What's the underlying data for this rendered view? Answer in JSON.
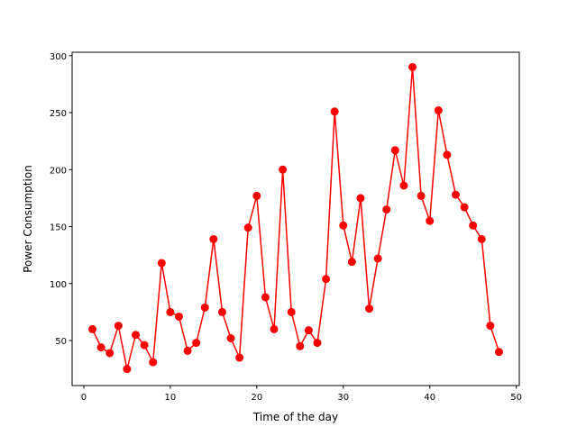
{
  "chart_data": {
    "type": "line",
    "title": "",
    "xlabel": "Time of the day",
    "ylabel": "Power Consumption",
    "xlim": [
      -1.35,
      50.35
    ],
    "ylim": [
      10.5,
      303
    ],
    "xticks": [
      0,
      10,
      20,
      30,
      40,
      50
    ],
    "yticks": [
      50,
      100,
      150,
      200,
      250,
      300
    ],
    "grid": false,
    "legend": "none",
    "color": "#ff0000",
    "marker": "circle",
    "x": [
      1,
      2,
      3,
      4,
      5,
      6,
      7,
      8,
      9,
      10,
      11,
      12,
      13,
      14,
      15,
      16,
      17,
      18,
      19,
      20,
      21,
      22,
      23,
      24,
      25,
      26,
      27,
      28,
      29,
      30,
      31,
      32,
      33,
      34,
      35,
      36,
      37,
      38,
      39,
      40,
      41,
      42,
      43,
      44,
      45,
      46,
      47,
      48
    ],
    "y": [
      60,
      44,
      39,
      63,
      25,
      55,
      46,
      31,
      118,
      75,
      71,
      41,
      48,
      79,
      139,
      75,
      52,
      35,
      149,
      177,
      88,
      60,
      200,
      75,
      45,
      59,
      48,
      104,
      251,
      151,
      119,
      175,
      78,
      122,
      165,
      217,
      186,
      290,
      177,
      155,
      252,
      213,
      178,
      167,
      151,
      139,
      63,
      40
    ]
  }
}
